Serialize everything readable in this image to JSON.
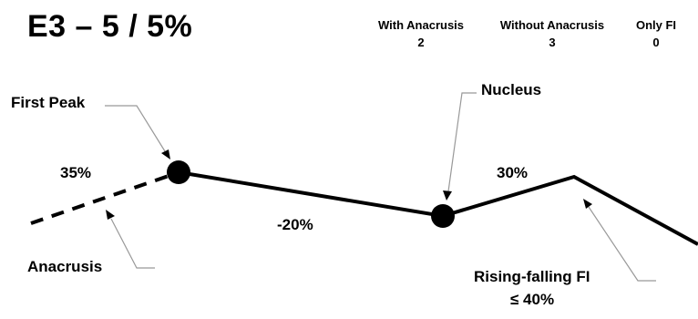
{
  "title": "E3 – 5 / 5%",
  "stats": [
    {
      "label": "With Anacrusis",
      "value": "2"
    },
    {
      "label": "Without Anacrusis",
      "value": "3"
    },
    {
      "label": "Only FI",
      "value": "0"
    }
  ],
  "labels": {
    "first_peak": "First Peak",
    "nucleus": "Nucleus",
    "anacrusis": "Anacrusis",
    "rising_falling": "Rising-falling FI",
    "rising_falling_limit": "≤ 40%"
  },
  "percentages": {
    "anacrusis_rise": "35%",
    "peak_to_nucleus": "-20%",
    "nucleus_rise": "30%"
  },
  "colors": {
    "ink": "#000000",
    "callout": "#999999"
  }
}
